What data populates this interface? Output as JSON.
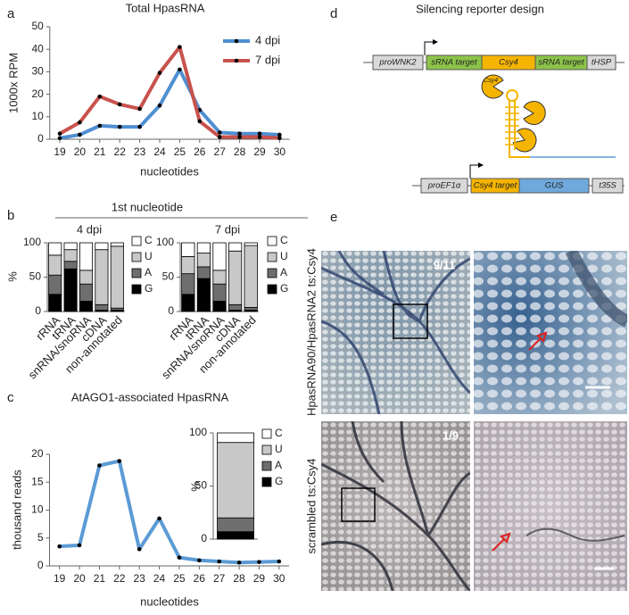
{
  "panel_labels": [
    "a",
    "b",
    "c",
    "d",
    "e"
  ],
  "panel_b_header": "1st nucleotide",
  "chart_data": [
    {
      "type": "line",
      "title": "Total HpasRNA",
      "x": [
        19,
        20,
        21,
        22,
        23,
        24,
        25,
        26,
        27,
        28,
        29,
        30
      ],
      "series": [
        {
          "name": "4 dpi",
          "color": "#4f8fd2",
          "values": [
            0.5,
            2,
            6,
            5.5,
            5.5,
            15,
            31,
            13,
            3,
            2.5,
            2.5,
            2
          ]
        },
        {
          "name": "7 dpi",
          "color": "#c8524d",
          "values": [
            2.5,
            7.5,
            19,
            15.5,
            13.5,
            29.5,
            41,
            8,
            1,
            1,
            1,
            0.5
          ]
        }
      ],
      "ylim": [
        0,
        50
      ],
      "yticks": [
        0,
        10,
        20,
        30,
        40,
        50
      ],
      "xlabel": "nucleotides",
      "ylabel": "1000x RPM"
    },
    {
      "type": "bar",
      "stacked": true,
      "title": "4 dpi",
      "categories": [
        "rRNA",
        "tRNA",
        "snRNA/snoRNA",
        "cDNA",
        "non-annotated"
      ],
      "series": [
        {
          "name": "G",
          "color": "#000000",
          "values": [
            25,
            62,
            15,
            2,
            2
          ]
        },
        {
          "name": "A",
          "color": "#6e6e6e",
          "values": [
            28,
            11,
            25,
            8,
            3
          ]
        },
        {
          "name": "U",
          "color": "#c8c8c8",
          "values": [
            29,
            17,
            20,
            80,
            90
          ]
        },
        {
          "name": "C",
          "color": "#ffffff",
          "values": [
            18,
            10,
            40,
            10,
            5
          ]
        }
      ],
      "ylim": [
        0,
        100
      ],
      "yticks": [
        0,
        50,
        100
      ],
      "ylabel": "%"
    },
    {
      "type": "bar",
      "stacked": true,
      "title": "7 dpi",
      "categories": [
        "rRNA",
        "tRNA",
        "snRNA/snoRNA",
        "cDNA",
        "non-annotated"
      ],
      "series": [
        {
          "name": "G",
          "color": "#000000",
          "values": [
            25,
            48,
            15,
            2,
            2
          ]
        },
        {
          "name": "A",
          "color": "#6e6e6e",
          "values": [
            30,
            17,
            25,
            8,
            4
          ]
        },
        {
          "name": "U",
          "color": "#c8c8c8",
          "values": [
            25,
            20,
            20,
            78,
            90
          ]
        },
        {
          "name": "C",
          "color": "#ffffff",
          "values": [
            20,
            15,
            40,
            12,
            4
          ]
        }
      ],
      "ylim": [
        0,
        100
      ],
      "yticks": [
        0,
        50,
        100
      ]
    },
    {
      "type": "line",
      "title": "AtAGO1-associated HpasRNA",
      "x": [
        19,
        20,
        21,
        22,
        23,
        24,
        25,
        26,
        27,
        28,
        29,
        30
      ],
      "series": [
        {
          "color": "#5b9bd5",
          "values": [
            3.5,
            3.7,
            18,
            18.8,
            3,
            8.5,
            1.5,
            1,
            0.8,
            0.6,
            0.7,
            0.8
          ]
        }
      ],
      "ylim": [
        0,
        20
      ],
      "yticks": [
        0,
        5,
        10,
        15,
        20
      ],
      "xlabel": "nucleotides",
      "ylabel": "thousand reads"
    },
    {
      "type": "bar",
      "stacked": true,
      "categories": [
        null
      ],
      "series": [
        {
          "name": "G",
          "color": "#000000",
          "values": [
            7
          ]
        },
        {
          "name": "A",
          "color": "#6e6e6e",
          "values": [
            13
          ]
        },
        {
          "name": "U",
          "color": "#c8c8c8",
          "values": [
            71
          ]
        },
        {
          "name": "C",
          "color": "#ffffff",
          "values": [
            9
          ]
        }
      ],
      "ylim": [
        0,
        100
      ],
      "yticks": [
        0,
        50,
        100
      ],
      "ylabel": "%"
    }
  ],
  "diagram": {
    "title": "Silencing reporter design",
    "construct1": [
      "proWNK2",
      "sRNA target",
      "Csy4",
      "sRNA target",
      "tHSP"
    ],
    "protein": "Csy4",
    "construct2": [
      "proEF1α",
      "Csy4 target",
      "GUS",
      "t35S"
    ]
  },
  "images": {
    "top_count": "9/11",
    "bottom_count": "1/9",
    "top_label": "HpasRNA90/HpasRNA2 ts:Csy4",
    "bottom_label": "scrambled ts:Csy4"
  }
}
